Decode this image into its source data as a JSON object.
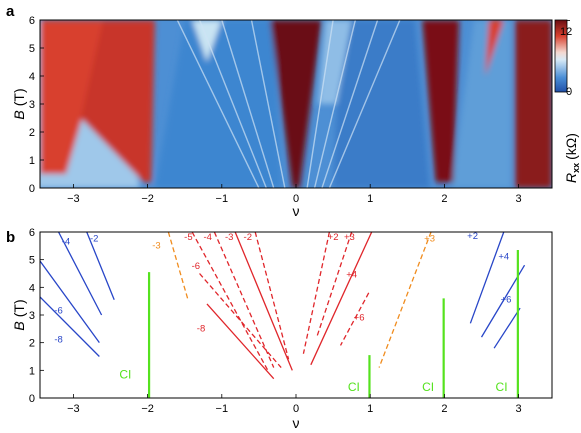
{
  "colors": {
    "red": "#e0262b",
    "blue": "#2846c8",
    "orange": "#f08c1e",
    "green": "#55e21e",
    "cmap_low": "#1f4fa8",
    "cmap_mid": "#f2f2f2",
    "cmap_high": "#6a0d12"
  },
  "chart_data": [
    {
      "panel": "a",
      "type": "heatmap",
      "xlabel": "ν",
      "ylabel_italic": "B",
      "ylabel_unit": "(T)",
      "xlim": [
        -3.45,
        3.45
      ],
      "ylim": [
        0,
        6
      ],
      "xticks": [
        -3,
        -2,
        -1,
        0,
        1,
        2,
        3
      ],
      "yticks": [
        0,
        1,
        2,
        3,
        4,
        5,
        6
      ],
      "colorbar": {
        "quantity": "R",
        "subscript": "xx",
        "unit": "(kΩ)",
        "min": 0,
        "max": 12,
        "ticks": [
          0,
          12
        ]
      },
      "resistive_bands_at_nu": [
        -3.1,
        -2,
        0,
        2,
        3.1
      ],
      "fan_lines_from_nu": [
        0,
        0.35
      ]
    },
    {
      "panel": "b",
      "type": "line",
      "xlabel": "ν",
      "ylabel_italic": "B",
      "ylabel_unit": "(T)",
      "xlim": [
        -3.45,
        3.45
      ],
      "ylim": [
        0,
        6
      ],
      "xticks": [
        -3,
        -2,
        -1,
        0,
        1,
        2,
        3
      ],
      "yticks": [
        0,
        1,
        2,
        3,
        4,
        5,
        6
      ],
      "series": [
        {
          "label": "-2",
          "color": "blue",
          "style": "solid",
          "x": [
            -2.82,
            -2.45
          ],
          "y": [
            6.0,
            3.55
          ],
          "label_at": [
            -2.72,
            5.8
          ]
        },
        {
          "label": "-4",
          "color": "blue",
          "style": "solid",
          "x": [
            -3.2,
            -2.62
          ],
          "y": [
            6.0,
            3.0
          ],
          "label_at": [
            -3.1,
            5.7
          ]
        },
        {
          "label": "-6",
          "color": "blue",
          "style": "solid",
          "x": [
            -3.45,
            -2.65
          ],
          "y": [
            4.95,
            2.0
          ],
          "label_at": [
            -3.2,
            3.2
          ]
        },
        {
          "label": "-8",
          "color": "blue",
          "style": "solid",
          "x": [
            -3.45,
            -2.65
          ],
          "y": [
            3.65,
            1.5
          ],
          "label_at": [
            -3.2,
            2.15
          ]
        },
        {
          "label": "-3",
          "color": "orange",
          "style": "dashed",
          "x": [
            -1.72,
            -1.45
          ],
          "y": [
            6.0,
            3.5
          ],
          "label_at": [
            -1.88,
            5.55
          ]
        },
        {
          "label": "-5",
          "color": "red",
          "style": "dashed",
          "x": [
            -1.4,
            -0.38
          ],
          "y": [
            6.0,
            1.0
          ],
          "label_at": [
            -1.45,
            5.85
          ]
        },
        {
          "label": "-4",
          "color": "red",
          "style": "dashed",
          "x": [
            -1.1,
            -0.3
          ],
          "y": [
            6.0,
            1.1
          ],
          "label_at": [
            -1.19,
            5.85
          ]
        },
        {
          "label": "-3",
          "color": "red",
          "style": "solid",
          "x": [
            -0.82,
            -0.05
          ],
          "y": [
            6.0,
            1.0
          ],
          "label_at": [
            -0.9,
            5.85
          ]
        },
        {
          "label": "-2",
          "color": "red",
          "style": "dashed",
          "x": [
            -0.55,
            -0.1
          ],
          "y": [
            6.0,
            1.4
          ],
          "label_at": [
            -0.65,
            5.85
          ]
        },
        {
          "label": "-6",
          "color": "red",
          "style": "dashed",
          "x": [
            -1.3,
            -0.2
          ],
          "y": [
            4.5,
            1.1
          ],
          "label_at": [
            -1.35,
            4.8
          ]
        },
        {
          "label": "-8",
          "color": "red",
          "style": "solid",
          "x": [
            -1.2,
            -0.3
          ],
          "y": [
            3.4,
            0.7
          ],
          "label_at": [
            -1.28,
            2.55
          ]
        },
        {
          "label": "+2",
          "color": "red",
          "style": "dashed",
          "x": [
            0.45,
            0.1
          ],
          "y": [
            6.0,
            1.6
          ],
          "label_at": [
            0.5,
            5.85
          ]
        },
        {
          "label": "+3",
          "color": "red",
          "style": "dashed",
          "x": [
            0.75,
            0.28
          ],
          "y": [
            6.0,
            2.2
          ],
          "label_at": [
            0.72,
            5.85
          ]
        },
        {
          "label": "+4",
          "color": "red",
          "style": "solid",
          "x": [
            1.02,
            0.2
          ],
          "y": [
            6.0,
            1.2
          ],
          "label_at": [
            0.75,
            4.5
          ]
        },
        {
          "label": "+6",
          "color": "red",
          "style": "dashed",
          "x": [
            0.98,
            0.6
          ],
          "y": [
            3.8,
            1.9
          ],
          "label_at": [
            0.85,
            2.95
          ]
        },
        {
          "label": "+3",
          "color": "orange",
          "style": "dashed",
          "x": [
            1.82,
            1.12
          ],
          "y": [
            6.0,
            1.1
          ],
          "label_at": [
            1.8,
            5.8
          ]
        },
        {
          "label": "+2",
          "color": "blue",
          "style": "solid",
          "x": [
            2.8,
            2.35
          ],
          "y": [
            6.0,
            2.7
          ],
          "label_at": [
            2.38,
            5.9
          ]
        },
        {
          "label": "+4",
          "color": "blue",
          "style": "solid",
          "x": [
            3.08,
            2.5
          ],
          "y": [
            4.8,
            2.2
          ],
          "label_at": [
            2.8,
            5.15
          ]
        },
        {
          "label": "+6",
          "color": "blue",
          "style": "solid",
          "x": [
            3.02,
            2.67
          ],
          "y": [
            3.25,
            1.8
          ],
          "label_at": [
            2.83,
            3.6
          ]
        },
        {
          "label": "CI",
          "color": "green",
          "style": "solid",
          "x": [
            -1.98,
            -1.98
          ],
          "y": [
            0,
            4.55
          ],
          "label_at": [
            -2.3,
            0.85
          ]
        },
        {
          "label": "CI",
          "color": "green",
          "style": "solid",
          "x": [
            0.99,
            0.99
          ],
          "y": [
            0,
            1.55
          ],
          "label_at": [
            0.78,
            0.4
          ]
        },
        {
          "label": "CI",
          "color": "green",
          "style": "solid",
          "x": [
            1.99,
            1.99
          ],
          "y": [
            0,
            3.6
          ],
          "label_at": [
            1.78,
            0.4
          ]
        },
        {
          "label": "CI",
          "color": "green",
          "style": "solid",
          "x": [
            2.99,
            2.99
          ],
          "y": [
            0,
            5.35
          ],
          "label_at": [
            2.77,
            0.4
          ]
        }
      ]
    }
  ]
}
